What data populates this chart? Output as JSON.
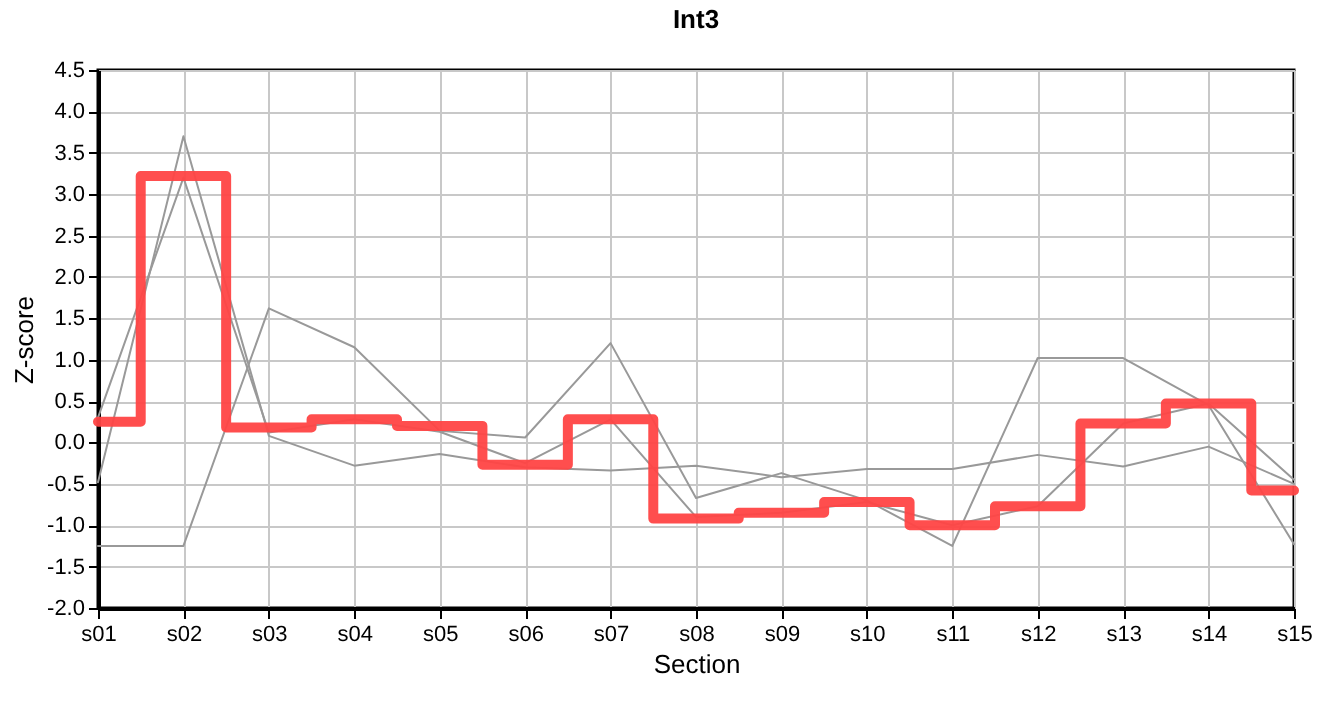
{
  "chart_data": {
    "type": "line",
    "title": "Int3",
    "xlabel": "Section",
    "ylabel": "Z-score",
    "categories": [
      "s01",
      "s02",
      "s03",
      "s04",
      "s05",
      "s06",
      "s07",
      "s08",
      "s09",
      "s10",
      "s11",
      "s12",
      "s13",
      "s14",
      "s15"
    ],
    "series": [
      {
        "color": "#999999",
        "values": [
          -0.48,
          3.7,
          0.08,
          -0.28,
          -0.14,
          -0.3,
          -0.34,
          -0.28,
          -0.42,
          -0.32,
          -0.32,
          -0.15,
          -0.29,
          -0.05,
          -0.5
        ]
      },
      {
        "color": "#999999",
        "values": [
          0.3,
          3.2,
          0.12,
          0.28,
          0.13,
          -0.25,
          0.28,
          -0.9,
          -0.85,
          -0.72,
          -1.0,
          -0.77,
          0.23,
          0.47,
          -0.45
        ]
      },
      {
        "color": "#999999",
        "values": [
          -1.25,
          -1.25,
          1.62,
          1.15,
          0.14,
          0.06,
          1.2,
          -0.67,
          -0.37,
          -0.7,
          -1.25,
          1.02,
          1.02,
          0.45,
          -1.23
        ]
      },
      {
        "type": "step",
        "color": "#ff4444",
        "values": [
          0.25,
          3.22,
          0.18,
          0.28,
          0.2,
          -0.27,
          0.28,
          -0.92,
          -0.85,
          -0.72,
          -1.0,
          -0.77,
          0.23,
          0.47,
          -0.58
        ]
      }
    ],
    "ylim": [
      -2,
      4.5
    ],
    "yticks": [
      {
        "value": -2,
        "label": "-2.0"
      },
      {
        "value": -1.5,
        "label": "-1.5"
      },
      {
        "value": -1,
        "label": "-1.0"
      },
      {
        "value": -0.5,
        "label": "-0.5"
      },
      {
        "value": 0,
        "label": "0.0"
      },
      {
        "value": 0.5,
        "label": "0.5"
      },
      {
        "value": 1,
        "label": "1.0"
      },
      {
        "value": 1.5,
        "label": "1.5"
      },
      {
        "value": 2,
        "label": "2.0"
      },
      {
        "value": 2.5,
        "label": "2.5"
      },
      {
        "value": 3,
        "label": "3.0"
      },
      {
        "value": 3.5,
        "label": "3.5"
      },
      {
        "value": 4,
        "label": "4.0"
      },
      {
        "value": 4.5,
        "label": "4.5"
      }
    ],
    "grid": true
  }
}
